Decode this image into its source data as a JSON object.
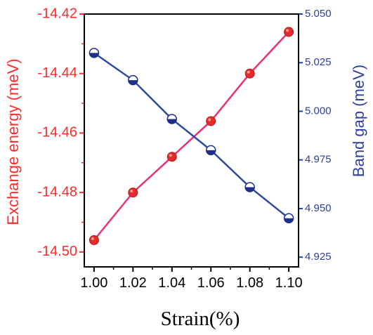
{
  "colors": {
    "left_axis": "#ff2a2a",
    "right_axis": "#2e3f9e",
    "exchange_line": "#e8317a",
    "exchange_marker": "#e42a2a",
    "bandgap_line": "#2e4aa0",
    "bandgap_marker": "#1f2f8a"
  },
  "chart_data": {
    "type": "line",
    "x": [
      1.0,
      1.02,
      1.04,
      1.06,
      1.08,
      1.1
    ],
    "xlabel": "Strain(%)",
    "xlim": [
      0.995,
      1.105
    ],
    "x_ticks": [
      "1.00",
      "1.02",
      "1.04",
      "1.06",
      "1.08",
      "1.10"
    ],
    "series": [
      {
        "key": "exchange",
        "axis": "left",
        "marker": "filled-circle",
        "values": [
          -14.496,
          -14.48,
          -14.468,
          -14.456,
          -14.44,
          -14.426
        ]
      },
      {
        "key": "bandgap",
        "axis": "right",
        "marker": "half-filled-circle",
        "values": [
          5.03,
          5.016,
          4.996,
          4.98,
          4.961,
          4.945
        ]
      }
    ],
    "y_left": {
      "label": "Exchange energy (meV)",
      "ylim": [
        -14.505,
        -14.42
      ],
      "ticks": [
        -14.42,
        -14.44,
        -14.46,
        -14.48,
        -14.5
      ],
      "tick_labels": [
        "-14.42",
        "-14.44",
        "-14.46",
        "-14.48",
        "-14.50"
      ]
    },
    "y_right": {
      "label": "Band gap (meV)",
      "ylim": [
        4.92,
        5.05
      ],
      "ticks": [
        5.05,
        5.025,
        5.0,
        4.975,
        4.95,
        4.925
      ],
      "tick_labels": [
        "5.050",
        "5.025",
        "5.000",
        "4.975",
        "4.950",
        "4.925"
      ]
    },
    "grid": false
  }
}
